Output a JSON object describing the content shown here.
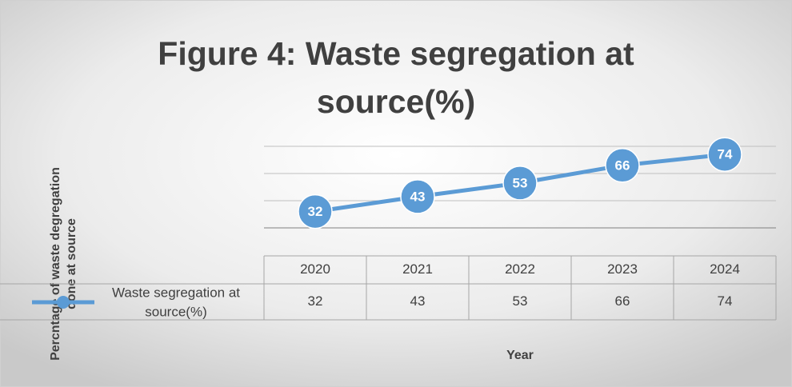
{
  "chart_data": {
    "type": "line",
    "title": [
      "Figure 4: Waste segregation at",
      "source(%)"
    ],
    "y_label": [
      "Percntage of waste degregation",
      "done at source"
    ],
    "x_label": "Year",
    "categories": [
      "2020",
      "2021",
      "2022",
      "2023",
      "2024"
    ],
    "series": [
      {
        "name": [
          "Waste segregation at",
          "source(%)"
        ],
        "color": "#5b9bd5",
        "values": [
          32,
          43,
          53,
          66,
          74
        ]
      }
    ],
    "ylim": [
      20,
      80
    ],
    "yticks": [
      20,
      40,
      60,
      80
    ],
    "grid": true,
    "y_tick_labels": false,
    "data_labels": true,
    "data_table": true
  }
}
